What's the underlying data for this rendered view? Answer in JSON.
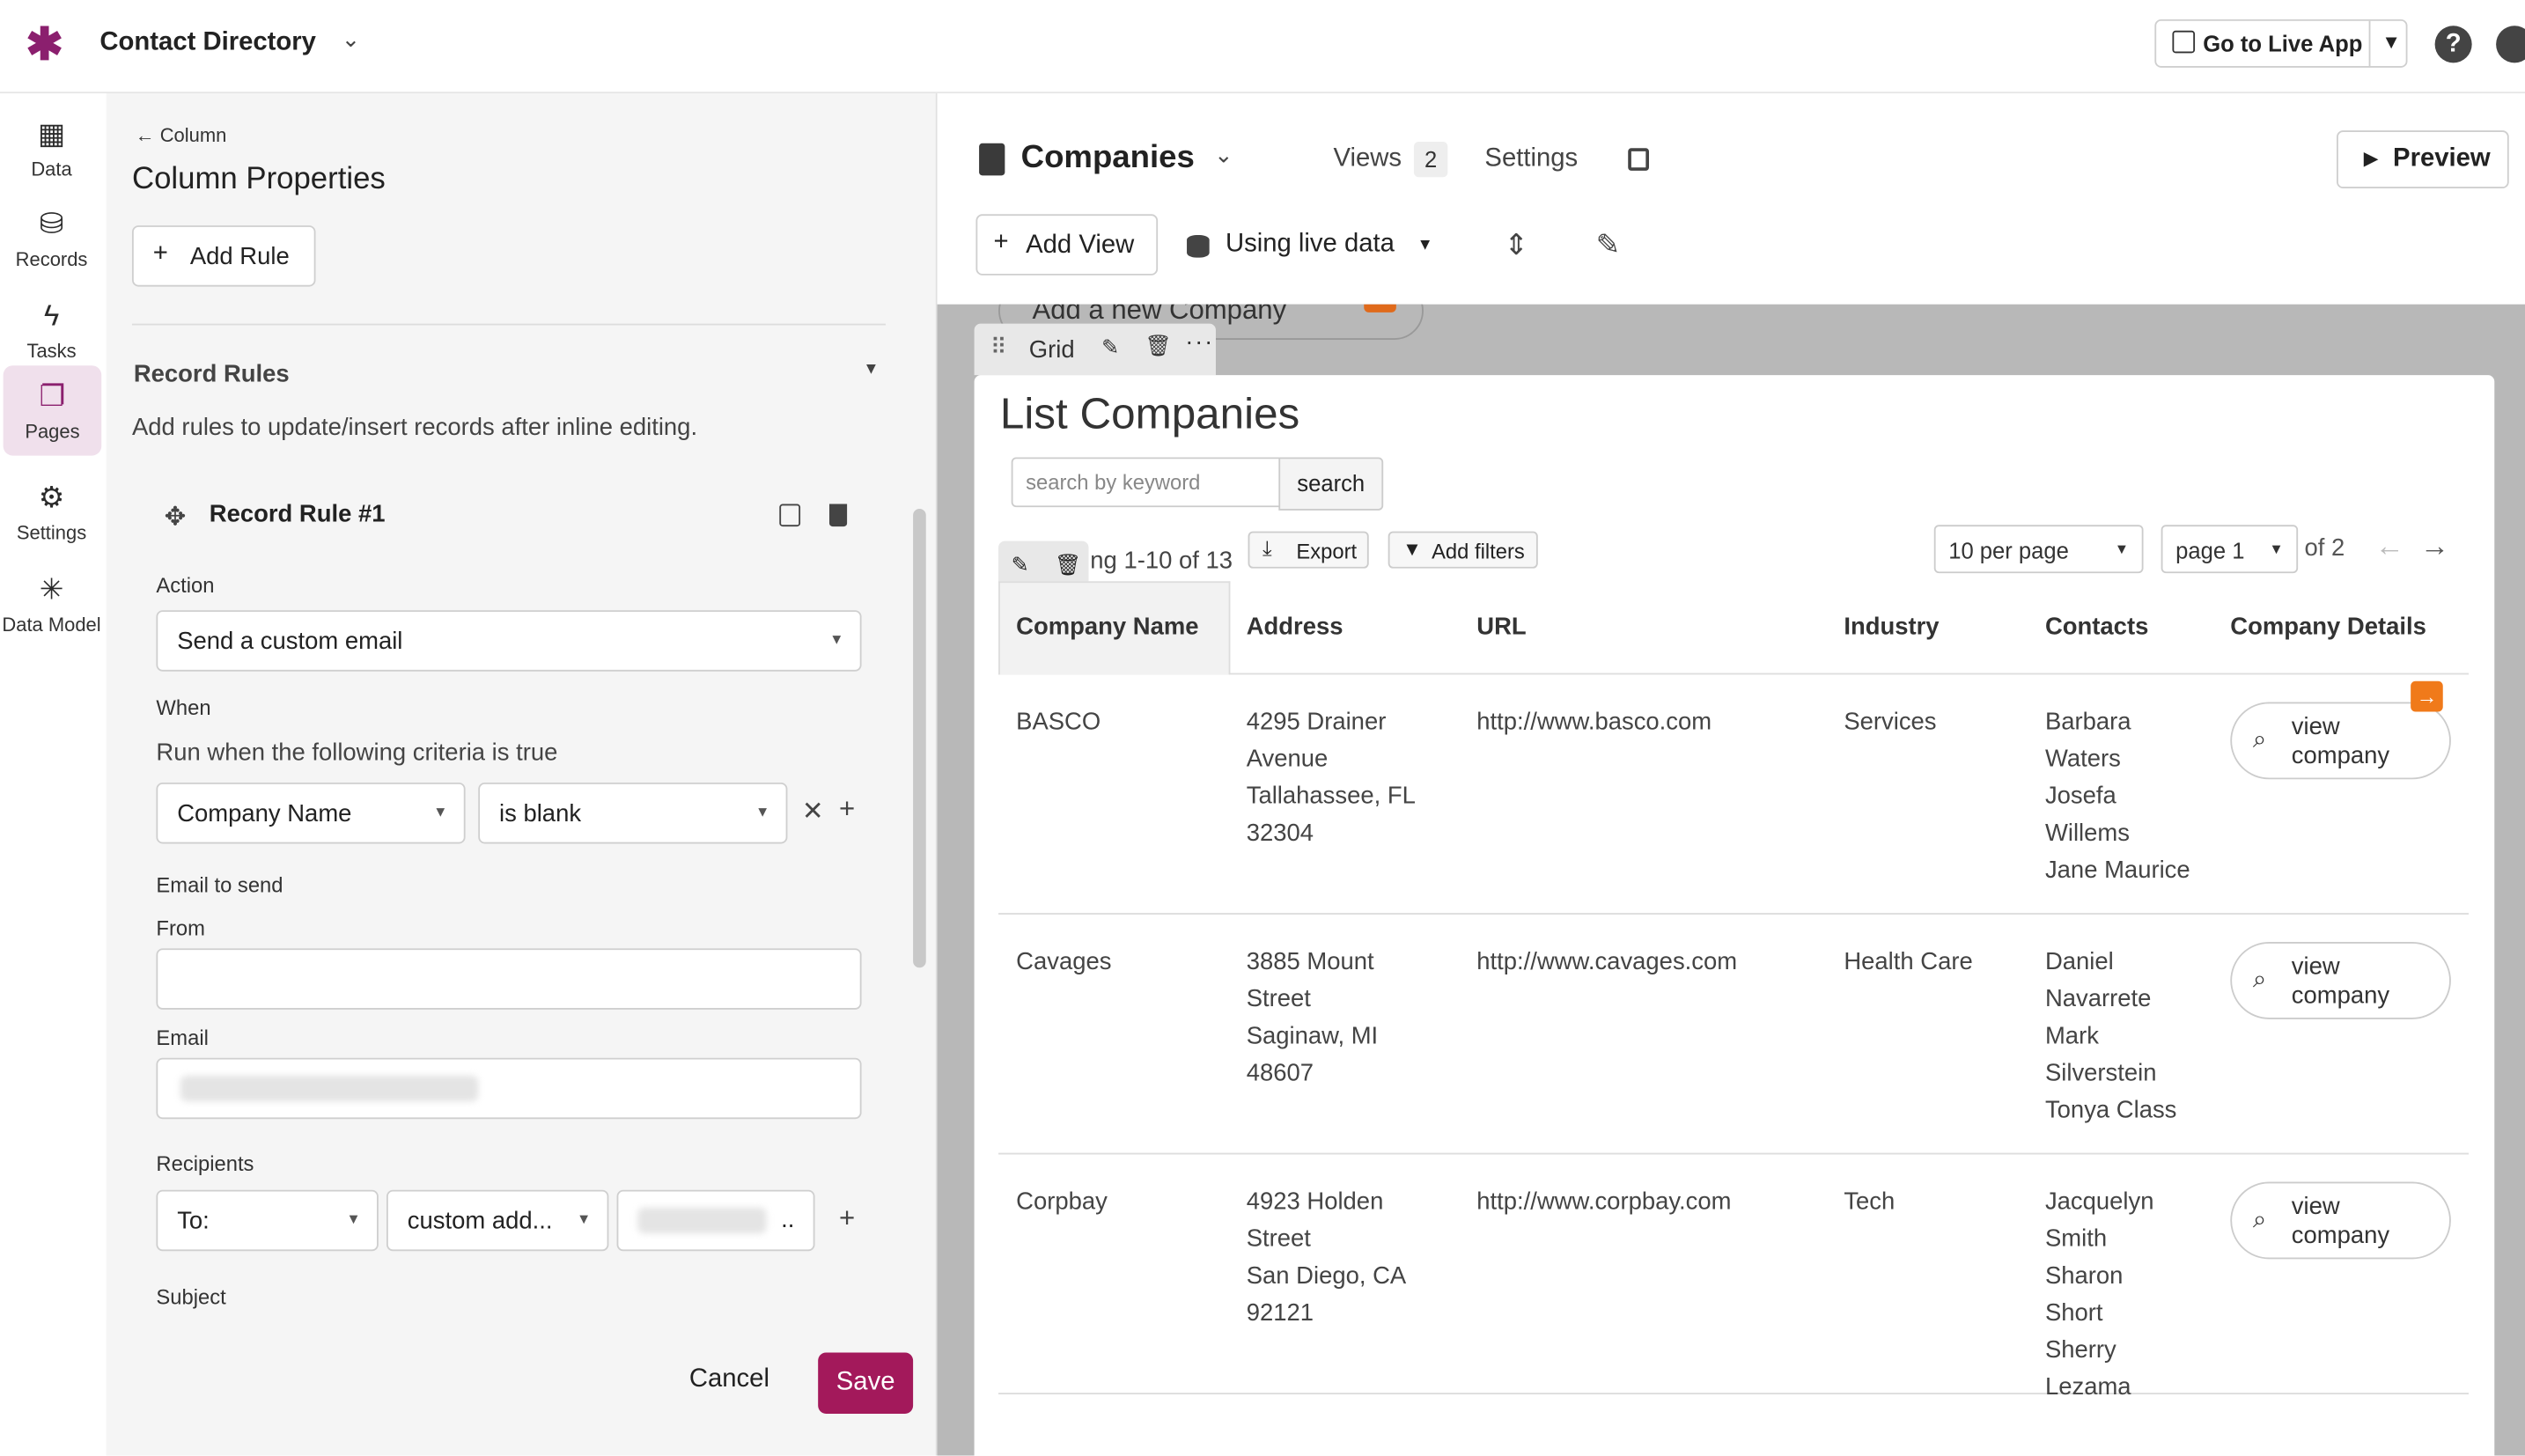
{
  "app": {
    "title": "Contact Directory"
  },
  "topbar": {
    "live_app": "Go to Live App"
  },
  "nav": {
    "items": [
      {
        "label": "Data"
      },
      {
        "label": "Records"
      },
      {
        "label": "Tasks"
      },
      {
        "label": "Pages"
      },
      {
        "label": "Settings"
      },
      {
        "label": "Data Model"
      }
    ]
  },
  "panel": {
    "back": "Column",
    "title": "Column Properties",
    "add_rule": "Add Rule",
    "record_rules_title": "Record Rules",
    "record_rules_desc": "Add rules to update/insert records after inline editing.",
    "rule_title": "Record Rule #1",
    "action_label": "Action",
    "action_value": "Send a custom email",
    "when_label": "When",
    "when_desc": "Run when the following criteria is true",
    "criteria_field": "Company Name",
    "criteria_op": "is blank",
    "email_to_send": "Email to send",
    "from_label": "From",
    "email_label": "Email",
    "recipients_label": "Recipients",
    "recipients_to": "To:",
    "recipients_type": "custom add...",
    "recipients_value_suffix": "..",
    "subject_label": "Subject",
    "cancel": "Cancel",
    "save": "Save"
  },
  "editor": {
    "page_name": "Companies",
    "views_label": "Views",
    "views_count": "2",
    "settings_label": "Settings",
    "preview": "Preview",
    "add_view": "Add View",
    "live_data": "Using live data",
    "add_new": "Add a new Company",
    "grid_label": "Grid",
    "list_title": "List Companies",
    "search_placeholder": "search by keyword",
    "search_btn": "search",
    "showing": "ng 1-10 of 13",
    "export": "Export",
    "add_filters": "Add filters",
    "per_page": "10 per page",
    "page": "page 1",
    "of_total": "of 2"
  },
  "table": {
    "headers": [
      "Company Name",
      "Address",
      "URL",
      "Industry",
      "Contacts",
      "Company Details"
    ],
    "view_label": "view company",
    "rows": [
      {
        "name": "BASCO",
        "address": [
          "4295 Drainer",
          "Avenue",
          "Tallahassee, FL",
          "32304"
        ],
        "url": "http://www.basco.com",
        "industry": "Services",
        "contacts": [
          "Barbara",
          "Waters",
          "Josefa",
          "Willems",
          "Jane Maurice"
        ]
      },
      {
        "name": "Cavages",
        "address": [
          "3885 Mount",
          "Street",
          "Saginaw, MI",
          "48607"
        ],
        "url": "http://www.cavages.com",
        "industry": "Health Care",
        "contacts": [
          "Daniel",
          "Navarrete",
          "Mark",
          "Silverstein",
          "Tonya Class"
        ]
      },
      {
        "name": "Corpbay",
        "address": [
          "4923 Holden",
          "Street",
          "San Diego, CA",
          "92121"
        ],
        "url": "http://www.corpbay.com",
        "industry": "Tech",
        "contacts": [
          "Jacquelyn",
          "Smith",
          "Sharon",
          "Short",
          "Sherry",
          "Lezama"
        ]
      }
    ]
  },
  "colors": {
    "accent": "#8b1f6e",
    "save": "#a3195b",
    "orange": "#f07a1a"
  }
}
